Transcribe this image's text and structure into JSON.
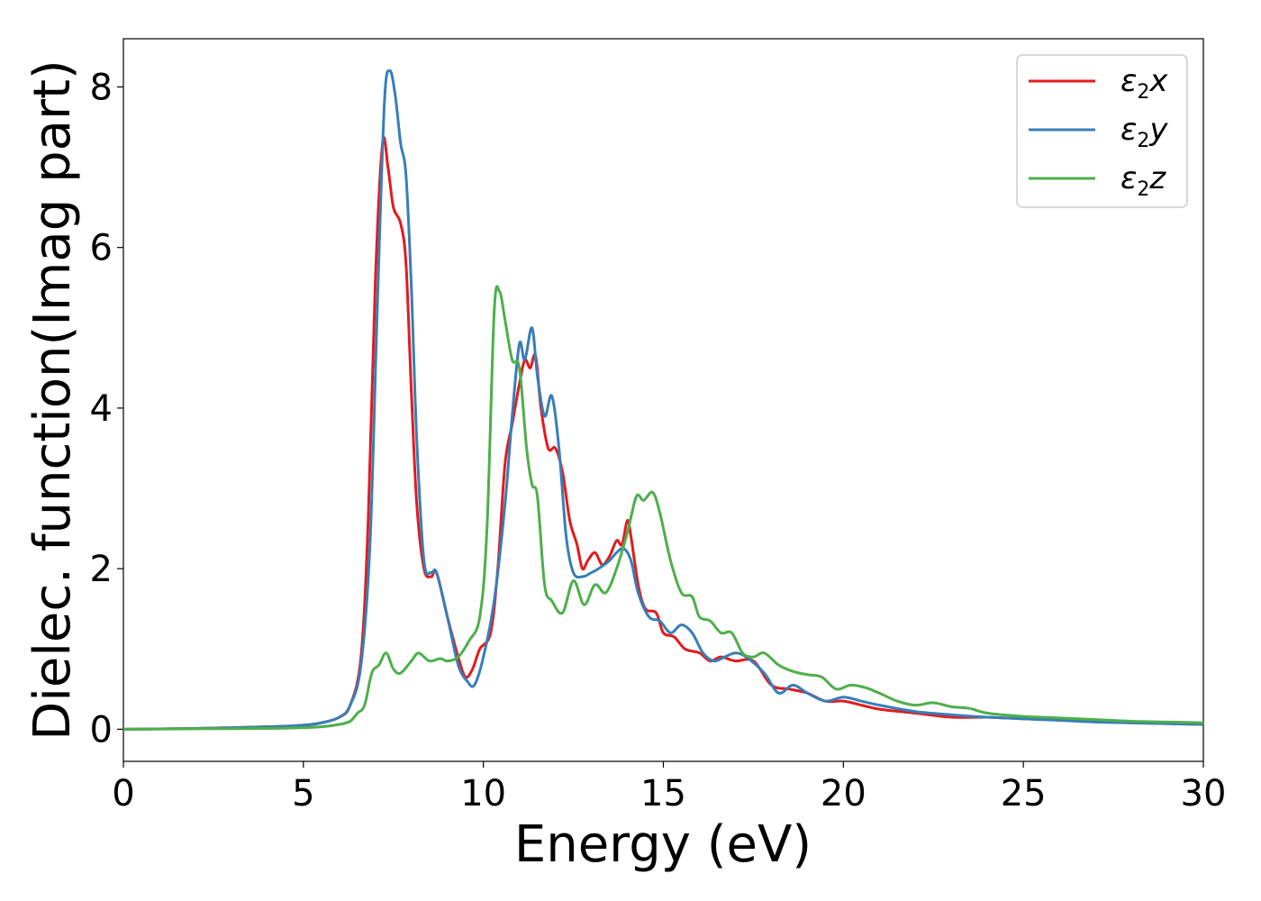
{
  "chart_data": {
    "type": "line",
    "title": "",
    "xlabel": "Energy (eV)",
    "ylabel": "Dielec. function(Imag part)",
    "xlim": [
      0,
      30
    ],
    "ylim": [
      -0.4,
      8.6
    ],
    "xticks": [
      0,
      5,
      10,
      15,
      20,
      25,
      30
    ],
    "yticks": [
      0,
      2,
      4,
      6,
      8
    ],
    "grid": false,
    "legend_position": "top-right",
    "series": [
      {
        "name": "ε2x",
        "base": "ε",
        "sub": "2",
        "suffix": "x",
        "color": "#e41a1c",
        "points": [
          [
            0,
            0
          ],
          [
            2,
            0.01
          ],
          [
            4,
            0.03
          ],
          [
            5,
            0.05
          ],
          [
            5.5,
            0.08
          ],
          [
            6,
            0.15
          ],
          [
            6.3,
            0.3
          ],
          [
            6.6,
            0.9
          ],
          [
            6.8,
            2.6
          ],
          [
            7.0,
            5.6
          ],
          [
            7.2,
            7.3
          ],
          [
            7.35,
            7.0
          ],
          [
            7.5,
            6.5
          ],
          [
            7.7,
            6.3
          ],
          [
            7.85,
            5.8
          ],
          [
            8.0,
            4.2
          ],
          [
            8.15,
            2.8
          ],
          [
            8.35,
            2.0
          ],
          [
            8.55,
            1.9
          ],
          [
            8.7,
            1.95
          ],
          [
            9.0,
            1.4
          ],
          [
            9.3,
            0.9
          ],
          [
            9.5,
            0.65
          ],
          [
            9.7,
            0.75
          ],
          [
            9.9,
            1.0
          ],
          [
            10.2,
            1.2
          ],
          [
            10.4,
            2.0
          ],
          [
            10.6,
            3.3
          ],
          [
            10.8,
            3.8
          ],
          [
            11.0,
            4.3
          ],
          [
            11.15,
            4.6
          ],
          [
            11.3,
            4.5
          ],
          [
            11.45,
            4.65
          ],
          [
            11.6,
            4.0
          ],
          [
            11.8,
            3.5
          ],
          [
            12.0,
            3.5
          ],
          [
            12.2,
            3.2
          ],
          [
            12.4,
            2.6
          ],
          [
            12.6,
            2.3
          ],
          [
            12.75,
            2.0
          ],
          [
            12.9,
            2.1
          ],
          [
            13.1,
            2.2
          ],
          [
            13.3,
            2.05
          ],
          [
            13.5,
            2.15
          ],
          [
            13.7,
            2.35
          ],
          [
            13.85,
            2.3
          ],
          [
            14.0,
            2.6
          ],
          [
            14.1,
            2.4
          ],
          [
            14.3,
            1.8
          ],
          [
            14.5,
            1.5
          ],
          [
            14.8,
            1.45
          ],
          [
            15.0,
            1.2
          ],
          [
            15.3,
            1.15
          ],
          [
            15.6,
            1.0
          ],
          [
            16.0,
            0.95
          ],
          [
            16.3,
            0.85
          ],
          [
            16.6,
            0.9
          ],
          [
            17.0,
            0.85
          ],
          [
            17.5,
            0.85
          ],
          [
            18.0,
            0.55
          ],
          [
            18.5,
            0.5
          ],
          [
            19.0,
            0.45
          ],
          [
            19.5,
            0.35
          ],
          [
            20.0,
            0.35
          ],
          [
            20.5,
            0.3
          ],
          [
            21.0,
            0.25
          ],
          [
            22.0,
            0.2
          ],
          [
            23.0,
            0.15
          ],
          [
            24.0,
            0.15
          ],
          [
            25.0,
            0.13
          ],
          [
            26.0,
            0.12
          ],
          [
            27.0,
            0.1
          ],
          [
            28.0,
            0.08
          ],
          [
            29.0,
            0.07
          ],
          [
            30.0,
            0.06
          ]
        ]
      },
      {
        "name": "ε2y",
        "base": "ε",
        "sub": "2",
        "suffix": "y",
        "color": "#377eb8",
        "points": [
          [
            0,
            0
          ],
          [
            2,
            0.01
          ],
          [
            4,
            0.03
          ],
          [
            5,
            0.05
          ],
          [
            5.5,
            0.08
          ],
          [
            6,
            0.15
          ],
          [
            6.3,
            0.3
          ],
          [
            6.6,
            0.8
          ],
          [
            6.85,
            2.3
          ],
          [
            7.05,
            5.2
          ],
          [
            7.25,
            7.8
          ],
          [
            7.4,
            8.2
          ],
          [
            7.55,
            7.9
          ],
          [
            7.7,
            7.3
          ],
          [
            7.85,
            6.9
          ],
          [
            8.0,
            5.5
          ],
          [
            8.15,
            3.6
          ],
          [
            8.35,
            2.1
          ],
          [
            8.55,
            1.95
          ],
          [
            8.7,
            1.95
          ],
          [
            9.0,
            1.4
          ],
          [
            9.3,
            0.8
          ],
          [
            9.55,
            0.6
          ],
          [
            9.75,
            0.55
          ],
          [
            10.0,
            0.9
          ],
          [
            10.3,
            1.6
          ],
          [
            10.6,
            2.8
          ],
          [
            10.8,
            3.9
          ],
          [
            11.0,
            4.8
          ],
          [
            11.15,
            4.6
          ],
          [
            11.35,
            5.0
          ],
          [
            11.5,
            4.4
          ],
          [
            11.7,
            3.9
          ],
          [
            11.9,
            4.15
          ],
          [
            12.1,
            3.5
          ],
          [
            12.3,
            2.4
          ],
          [
            12.5,
            1.95
          ],
          [
            12.75,
            1.9
          ],
          [
            13.0,
            1.95
          ],
          [
            13.2,
            2.0
          ],
          [
            13.5,
            2.1
          ],
          [
            13.7,
            2.2
          ],
          [
            13.9,
            2.25
          ],
          [
            14.1,
            2.1
          ],
          [
            14.3,
            1.7
          ],
          [
            14.6,
            1.4
          ],
          [
            14.9,
            1.35
          ],
          [
            15.2,
            1.2
          ],
          [
            15.5,
            1.3
          ],
          [
            15.8,
            1.2
          ],
          [
            16.1,
            0.95
          ],
          [
            16.4,
            0.85
          ],
          [
            16.7,
            0.9
          ],
          [
            17.0,
            0.95
          ],
          [
            17.3,
            0.9
          ],
          [
            17.8,
            0.7
          ],
          [
            18.2,
            0.45
          ],
          [
            18.6,
            0.55
          ],
          [
            19.0,
            0.45
          ],
          [
            19.5,
            0.35
          ],
          [
            20.0,
            0.4
          ],
          [
            20.5,
            0.35
          ],
          [
            21.0,
            0.3
          ],
          [
            22.0,
            0.22
          ],
          [
            23.0,
            0.18
          ],
          [
            24.0,
            0.15
          ],
          [
            25.0,
            0.13
          ],
          [
            26.0,
            0.11
          ],
          [
            27.0,
            0.09
          ],
          [
            28.0,
            0.08
          ],
          [
            29.0,
            0.07
          ],
          [
            30.0,
            0.06
          ]
        ]
      },
      {
        "name": "ε2z",
        "base": "ε",
        "sub": "2",
        "suffix": "z",
        "color": "#4daf4a",
        "points": [
          [
            0,
            0
          ],
          [
            2,
            0.005
          ],
          [
            4,
            0.01
          ],
          [
            5,
            0.02
          ],
          [
            5.5,
            0.03
          ],
          [
            6,
            0.06
          ],
          [
            6.3,
            0.1
          ],
          [
            6.5,
            0.2
          ],
          [
            6.7,
            0.3
          ],
          [
            6.9,
            0.7
          ],
          [
            7.1,
            0.8
          ],
          [
            7.3,
            0.95
          ],
          [
            7.5,
            0.75
          ],
          [
            7.7,
            0.7
          ],
          [
            8.0,
            0.85
          ],
          [
            8.2,
            0.95
          ],
          [
            8.5,
            0.85
          ],
          [
            8.8,
            0.88
          ],
          [
            9.0,
            0.85
          ],
          [
            9.3,
            0.9
          ],
          [
            9.6,
            1.1
          ],
          [
            9.9,
            1.4
          ],
          [
            10.1,
            2.5
          ],
          [
            10.3,
            5.2
          ],
          [
            10.45,
            5.45
          ],
          [
            10.6,
            5.1
          ],
          [
            10.8,
            4.6
          ],
          [
            11.0,
            4.5
          ],
          [
            11.2,
            3.5
          ],
          [
            11.35,
            3.05
          ],
          [
            11.5,
            2.9
          ],
          [
            11.7,
            1.8
          ],
          [
            11.9,
            1.6
          ],
          [
            12.2,
            1.45
          ],
          [
            12.5,
            1.85
          ],
          [
            12.8,
            1.55
          ],
          [
            13.1,
            1.8
          ],
          [
            13.4,
            1.7
          ],
          [
            13.7,
            2.0
          ],
          [
            14.0,
            2.45
          ],
          [
            14.25,
            2.9
          ],
          [
            14.45,
            2.85
          ],
          [
            14.7,
            2.95
          ],
          [
            14.9,
            2.7
          ],
          [
            15.2,
            2.1
          ],
          [
            15.5,
            1.7
          ],
          [
            15.8,
            1.65
          ],
          [
            16.0,
            1.4
          ],
          [
            16.3,
            1.35
          ],
          [
            16.6,
            1.2
          ],
          [
            16.9,
            1.2
          ],
          [
            17.2,
            0.95
          ],
          [
            17.5,
            0.9
          ],
          [
            17.8,
            0.95
          ],
          [
            18.2,
            0.8
          ],
          [
            18.6,
            0.72
          ],
          [
            19.0,
            0.68
          ],
          [
            19.4,
            0.65
          ],
          [
            19.8,
            0.5
          ],
          [
            20.2,
            0.55
          ],
          [
            20.6,
            0.52
          ],
          [
            21.0,
            0.45
          ],
          [
            21.5,
            0.35
          ],
          [
            22.0,
            0.3
          ],
          [
            22.5,
            0.33
          ],
          [
            23.0,
            0.28
          ],
          [
            23.5,
            0.26
          ],
          [
            24.0,
            0.2
          ],
          [
            25.0,
            0.16
          ],
          [
            26.0,
            0.14
          ],
          [
            27.0,
            0.12
          ],
          [
            28.0,
            0.1
          ],
          [
            29.0,
            0.09
          ],
          [
            30.0,
            0.08
          ]
        ]
      }
    ]
  }
}
